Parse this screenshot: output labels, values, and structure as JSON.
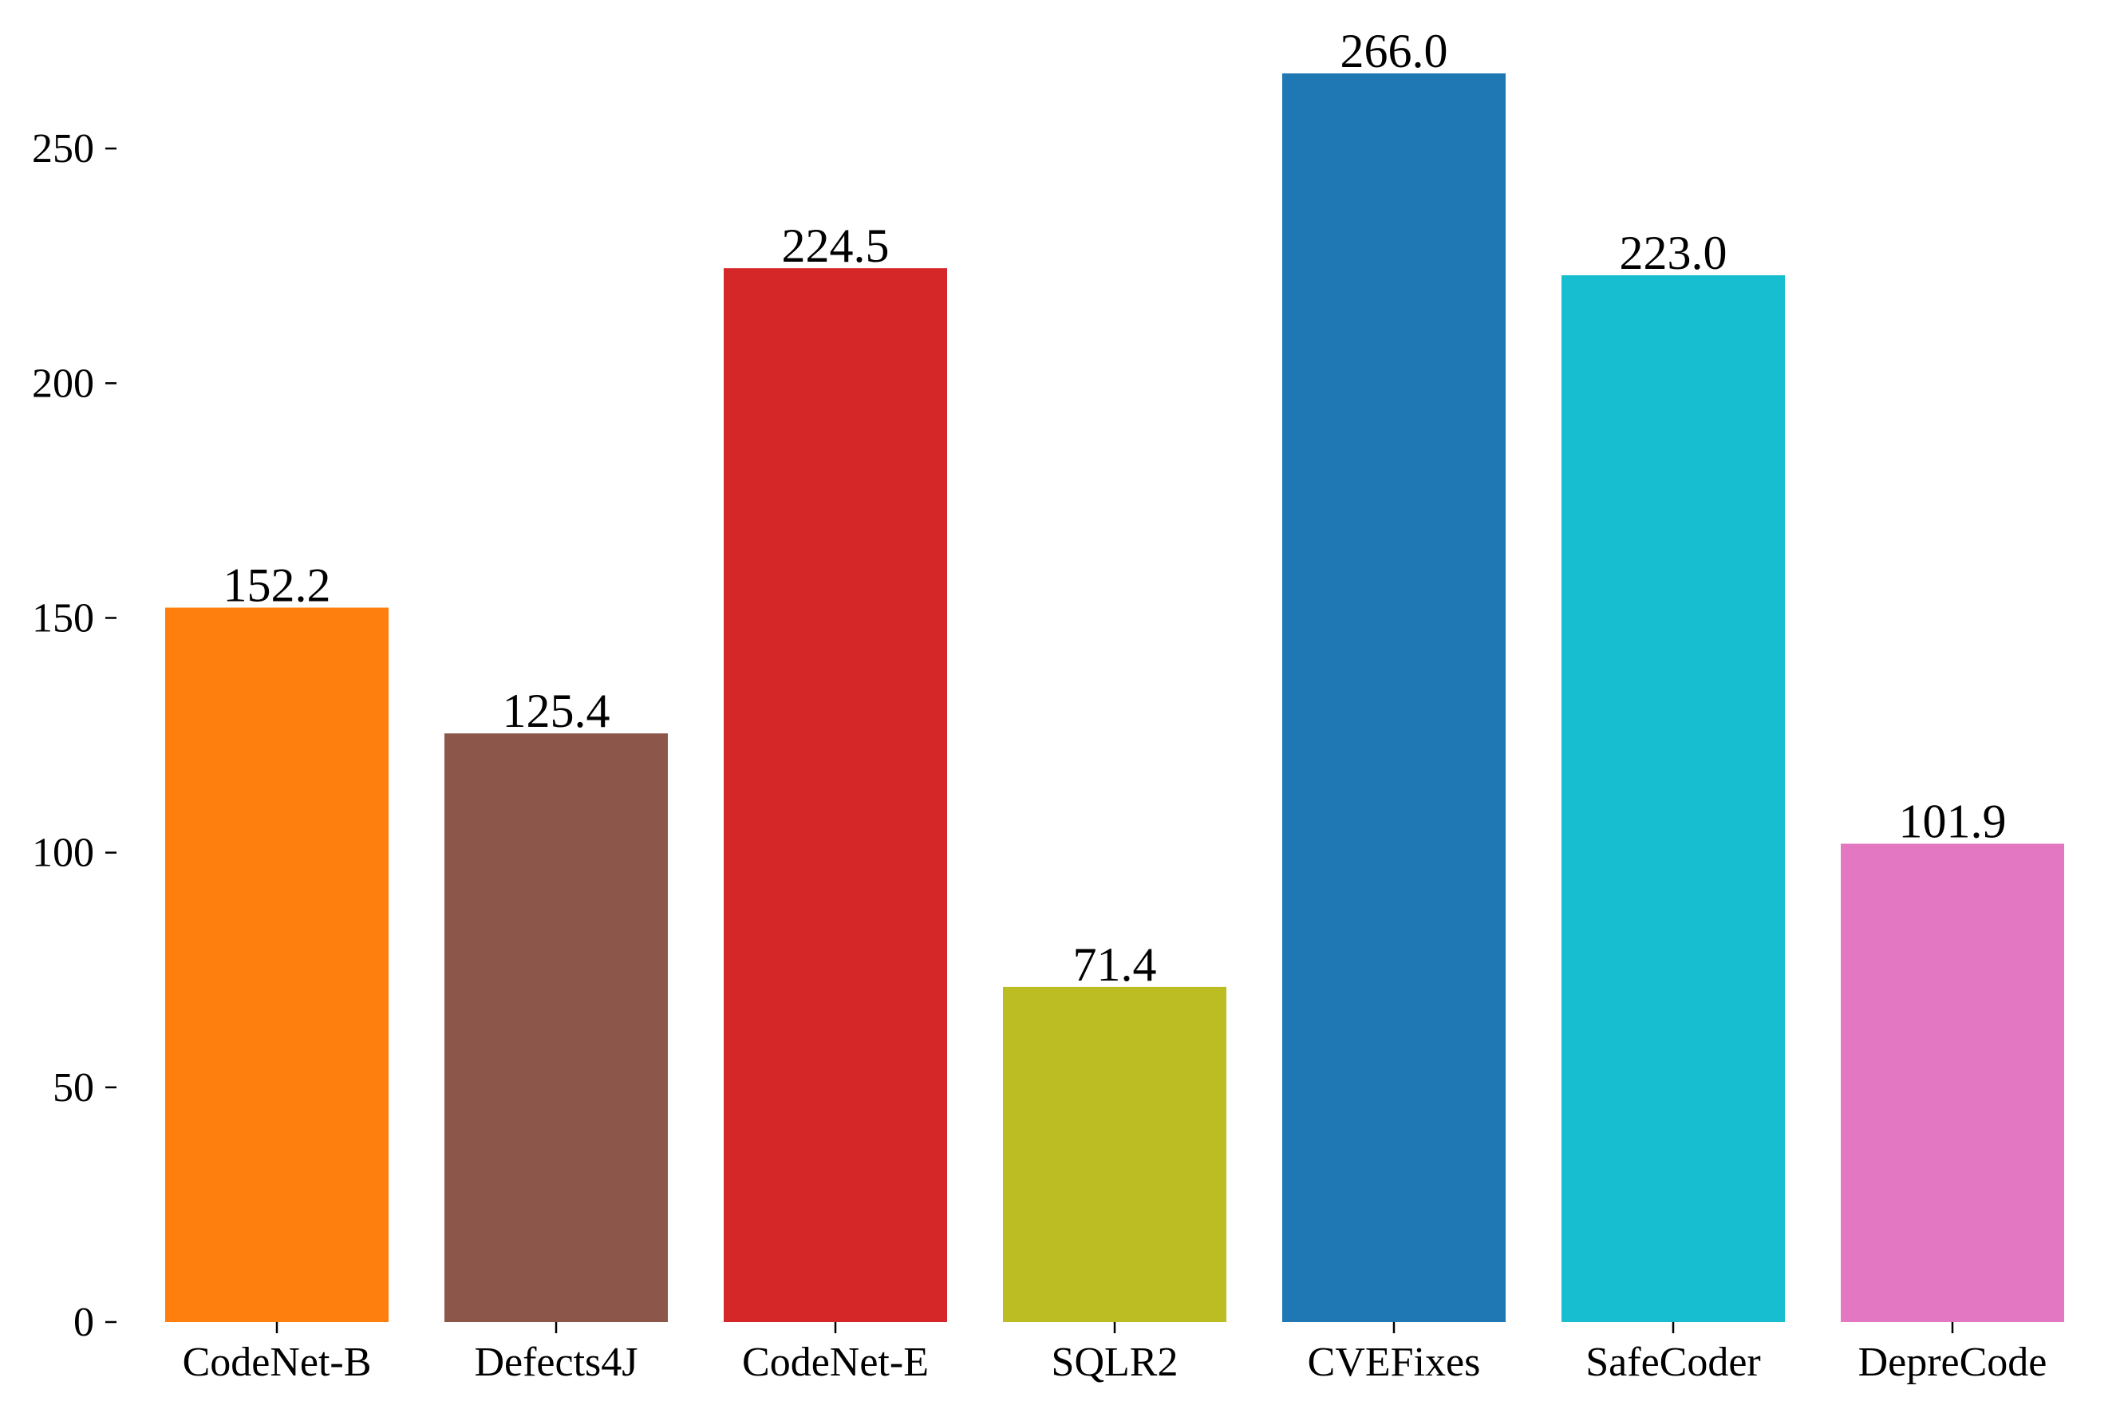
{
  "chart_data": {
    "type": "bar",
    "title": "",
    "xlabel": "",
    "ylabel": "",
    "categories": [
      "CodeNet-B",
      "Defects4J",
      "CodeNet-E",
      "SQLR2",
      "CVEFixes",
      "SafeCoder",
      "DepreCode"
    ],
    "values": [
      152.2,
      125.4,
      224.5,
      71.4,
      266.0,
      223.0,
      101.9
    ],
    "value_labels": [
      "152.2",
      "125.4",
      "224.5",
      "71.4",
      "266.0",
      "223.0",
      "101.9"
    ],
    "colors": [
      "#ff7f0e",
      "#8c564b",
      "#d62728",
      "#bcbd22",
      "#1f77b4",
      "#17becf",
      "#e377c2"
    ],
    "ylim": [
      0,
      266
    ],
    "yticks": [
      0,
      50,
      100,
      150,
      200,
      250
    ],
    "grid": false,
    "legend": "none"
  }
}
